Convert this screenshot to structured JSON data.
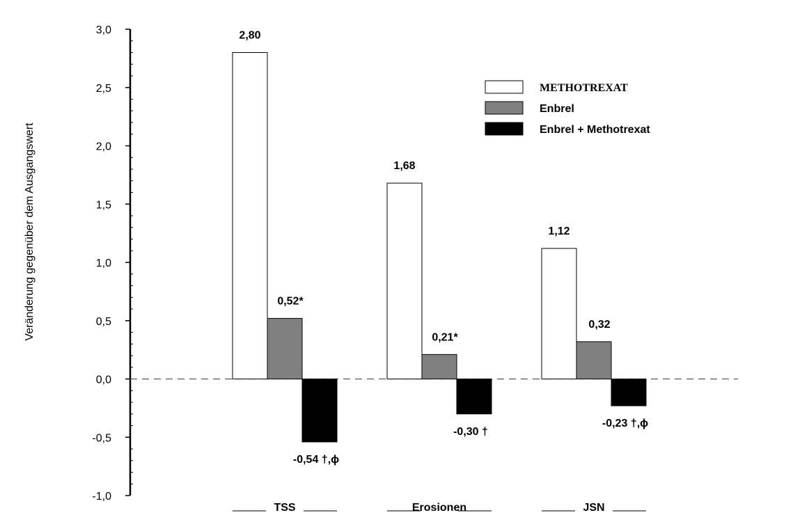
{
  "chart_data": {
    "type": "bar",
    "ylabel": "Veränderung gegenüber dem Ausgangswert",
    "ylim": [
      -1.0,
      3.0
    ],
    "yticks": [
      "3,0",
      "2,5",
      "2,0",
      "1,5",
      "1,0",
      "0,5",
      "0,0",
      "-0,5",
      "-1,0"
    ],
    "ytick_values": [
      3.0,
      2.5,
      2.0,
      1.5,
      1.0,
      0.5,
      0.0,
      -0.5,
      -1.0
    ],
    "categories": [
      "TSS",
      "Erosionen",
      "JSN"
    ],
    "series": [
      {
        "name": "METHOTREXAT",
        "color": "#ffffff",
        "values": [
          2.8,
          1.68,
          1.12
        ],
        "labels": [
          "2,80",
          "1,68",
          "1,12"
        ]
      },
      {
        "name": "Enbrel",
        "color": "#808080",
        "values": [
          0.52,
          0.21,
          0.32
        ],
        "labels": [
          "0,52*",
          "0,21*",
          "0,32"
        ]
      },
      {
        "name": "Enbrel + Methotrexat",
        "color": "#000000",
        "values": [
          -0.54,
          -0.3,
          -0.23
        ],
        "labels": [
          "-0,54 †,ϕ",
          "-0,30 †",
          "-0,23 †,ϕ"
        ]
      }
    ],
    "legend_position": "top-right",
    "grid": false,
    "zero_line": "dashed"
  }
}
